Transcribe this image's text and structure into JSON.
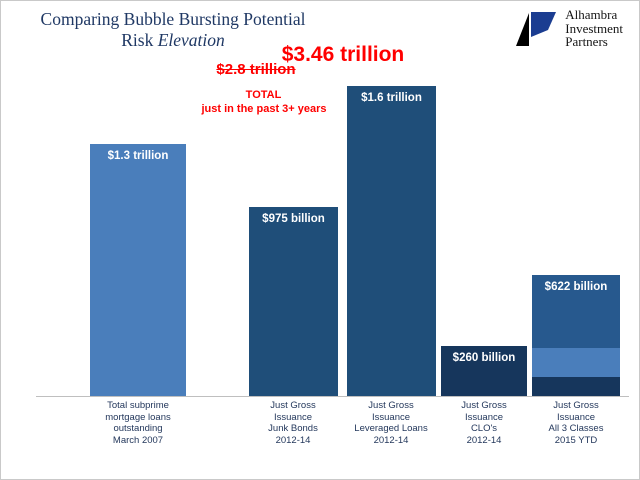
{
  "header": {
    "title_line1": "Comparing Bubble Bursting Potential",
    "title_line2_prefix": "Risk ",
    "title_line2_italic": "Elevation",
    "title_color": "#1f3864"
  },
  "logo": {
    "line1": "Alhambra",
    "line2": "Investment",
    "line3": "Partners",
    "mark_blue": "#1b3d91",
    "mark_black": "#000000"
  },
  "annotation": {
    "old_total": "$2.8 trillion",
    "new_total": "$3.46 trillion",
    "caption_line1": "TOTAL",
    "caption_line2": "just in the past 3+ years",
    "color": "#ff0000"
  },
  "chart_data": {
    "type": "bar",
    "title": "Comparing Bubble Bursting Potential Risk Elevation",
    "xlabel": "",
    "ylabel": "",
    "unit": "USD",
    "ylim_trillions": [
      0,
      1.7
    ],
    "grid": false,
    "legend": "none",
    "axis_color": "#bfbfbf",
    "annotations": [
      "$2.8 trillion (struck through, superseded total)",
      "$3.46 trillion (revised total)",
      "TOTAL just in the past 3+ years"
    ],
    "categories": [
      "Total subprime mortgage loans outstanding March 2007",
      "Just Gross Issuance Junk Bonds 2012-14",
      "Just Gross Issuance Leveraged Loans 2012-14",
      "Just Gross Issuance CLO's 2012-14",
      "Just Gross Issuance All 3 Classes 2015 YTD"
    ],
    "bars": [
      {
        "value_label": "$1.3 trillion",
        "value_trillions": 1.3,
        "color": "#4a7ebb",
        "category_lines": [
          "Total subprime",
          "mortgage  loans",
          "outstanding",
          "March 2007"
        ]
      },
      {
        "value_label": "$975 billion",
        "value_trillions": 0.975,
        "color": "#1f4e79",
        "category_lines": [
          "Just Gross",
          "Issuance",
          "Junk Bonds",
          "2012-14"
        ]
      },
      {
        "value_label": "$1.6 trillion",
        "value_trillions": 1.6,
        "color": "#1f4e79",
        "category_lines": [
          "Just Gross",
          "Issuance",
          "Leveraged  Loans",
          "2012-14"
        ]
      },
      {
        "value_label": "$260 billion",
        "value_trillions": 0.26,
        "color": "#16365c",
        "category_lines": [
          "Just Gross",
          "Issuance",
          "CLO's",
          "2012-14"
        ]
      },
      {
        "value_label": "$622 billion",
        "value_trillions": 0.622,
        "color": "#27598e",
        "segments_bottom_to_top": [
          {
            "value_trillions": 0.1,
            "color": "#16365c"
          },
          {
            "value_trillions": 0.149,
            "color": "#4a7ebb"
          },
          {
            "value_trillions": 0.373,
            "color": "#27598e"
          }
        ],
        "category_lines": [
          "Just Gross",
          "Issuance",
          "All 3 Classes",
          "2015 YTD"
        ]
      }
    ]
  }
}
